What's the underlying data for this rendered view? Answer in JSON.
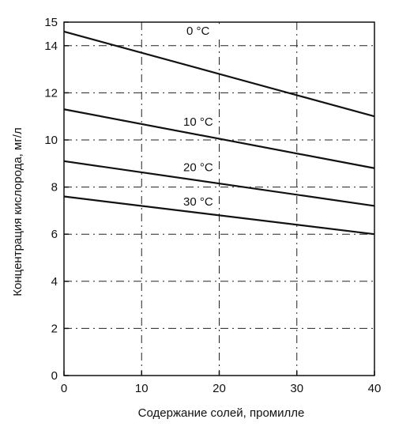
{
  "chart_data": {
    "type": "line",
    "title": "",
    "xlabel": "Содержание солей, промилле",
    "ylabel": "Концентрация кислорода, мг/л",
    "xlim": [
      0,
      40
    ],
    "ylim": [
      0,
      15
    ],
    "x_ticks": [
      "0",
      "10",
      "20",
      "30",
      "40"
    ],
    "y_ticks": [
      "0",
      "2",
      "4",
      "6",
      "8",
      "10",
      "12",
      "14",
      "15"
    ],
    "grid": true,
    "grid_style": "dash-dot",
    "legend": "inline labels near lines",
    "line_color": "#111111",
    "series": [
      {
        "name": "0 °C",
        "x": [
          0,
          40
        ],
        "values": [
          14.6,
          11.0
        ]
      },
      {
        "name": "10 °C",
        "x": [
          0,
          40
        ],
        "values": [
          11.3,
          8.8
        ]
      },
      {
        "name": "20 °C",
        "x": [
          0,
          40
        ],
        "values": [
          9.1,
          7.2
        ]
      },
      {
        "name": "30 °C",
        "x": [
          0,
          40
        ],
        "values": [
          7.6,
          6.0
        ]
      }
    ]
  }
}
